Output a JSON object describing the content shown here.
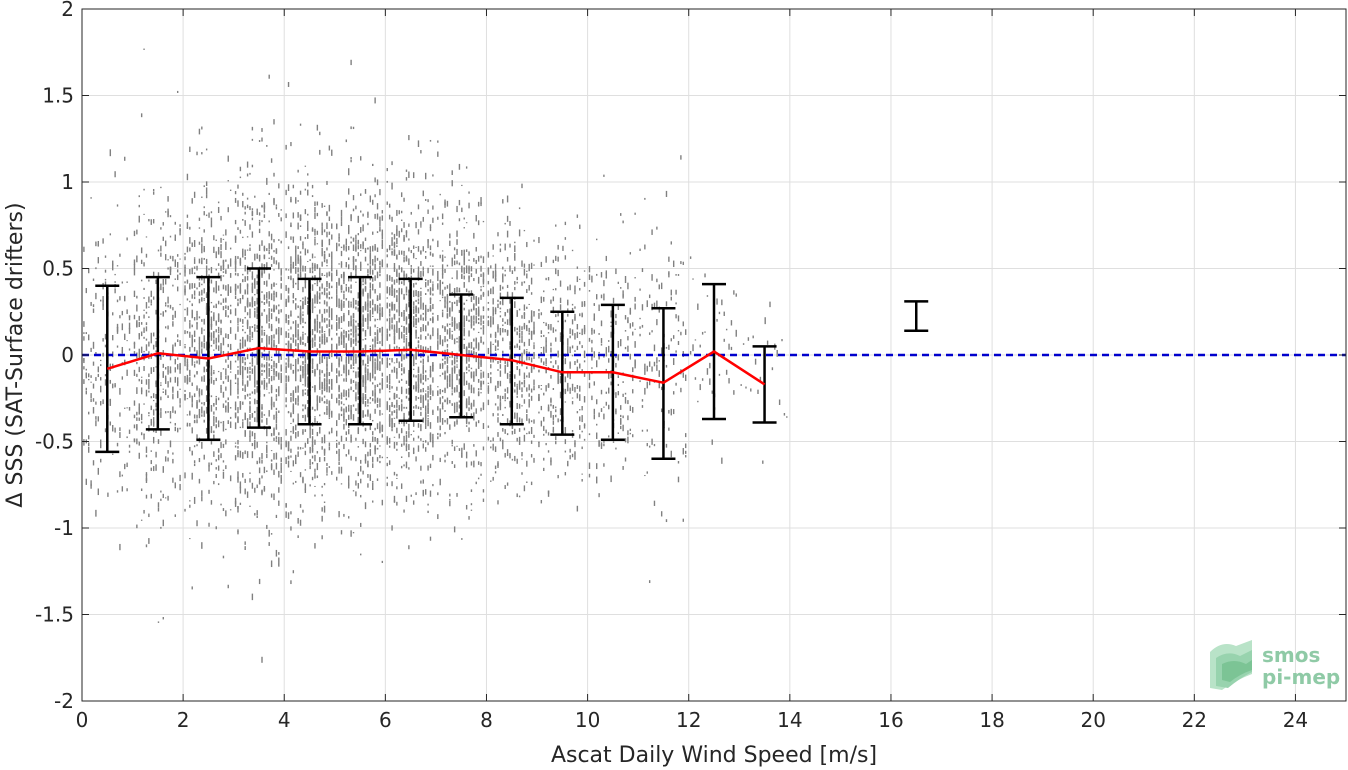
{
  "chart_data": {
    "type": "scatter",
    "xlabel": "Ascat Daily Wind Speed [m/s]",
    "ylabel": "Δ SSS (SAT-Surface drifters)",
    "xlim": [
      0,
      25
    ],
    "ylim": [
      -2,
      2
    ],
    "x_ticks": [
      "0",
      "2",
      "4",
      "6",
      "8",
      "10",
      "12",
      "14",
      "16",
      "18",
      "20",
      "22",
      "24"
    ],
    "y_ticks": [
      "2",
      "1.5",
      "1",
      "0.5",
      "0",
      "-0.5",
      "-1",
      "-1.5",
      "-2"
    ],
    "grid": true,
    "reference_line": {
      "y": 0,
      "color": "#0000cc",
      "style": "dashed"
    },
    "scatter_color": "#808080",
    "mean_line_color": "#ff0000",
    "errorbar_color": "#000000",
    "bins": [
      {
        "x": 0.5,
        "mean": -0.08,
        "upper": 0.4,
        "lower": -0.56
      },
      {
        "x": 1.5,
        "mean": 0.01,
        "upper": 0.45,
        "lower": -0.43
      },
      {
        "x": 2.5,
        "mean": -0.02,
        "upper": 0.45,
        "lower": -0.49
      },
      {
        "x": 3.5,
        "mean": 0.04,
        "upper": 0.5,
        "lower": -0.42
      },
      {
        "x": 4.5,
        "mean": 0.02,
        "upper": 0.44,
        "lower": -0.4
      },
      {
        "x": 5.5,
        "mean": 0.02,
        "upper": 0.45,
        "lower": -0.4
      },
      {
        "x": 6.5,
        "mean": 0.03,
        "upper": 0.44,
        "lower": -0.38
      },
      {
        "x": 7.5,
        "mean": 0.0,
        "upper": 0.35,
        "lower": -0.36
      },
      {
        "x": 8.5,
        "mean": -0.03,
        "upper": 0.33,
        "lower": -0.4
      },
      {
        "x": 9.5,
        "mean": -0.1,
        "upper": 0.25,
        "lower": -0.46
      },
      {
        "x": 10.5,
        "mean": -0.1,
        "upper": 0.29,
        "lower": -0.49
      },
      {
        "x": 11.5,
        "mean": -0.16,
        "upper": 0.27,
        "lower": -0.6
      },
      {
        "x": 12.5,
        "mean": 0.02,
        "upper": 0.41,
        "lower": -0.37
      },
      {
        "x": 13.5,
        "mean": -0.17,
        "upper": 0.05,
        "lower": -0.39
      },
      {
        "x": 16.5,
        "mean": 0.22,
        "upper": 0.31,
        "lower": 0.14
      }
    ],
    "mean_line_bins": [
      0,
      1,
      2,
      3,
      4,
      5,
      6,
      7,
      8,
      9,
      10,
      11,
      12,
      13
    ]
  },
  "logo": {
    "line1": "smos",
    "line2": "pi-mep"
  }
}
